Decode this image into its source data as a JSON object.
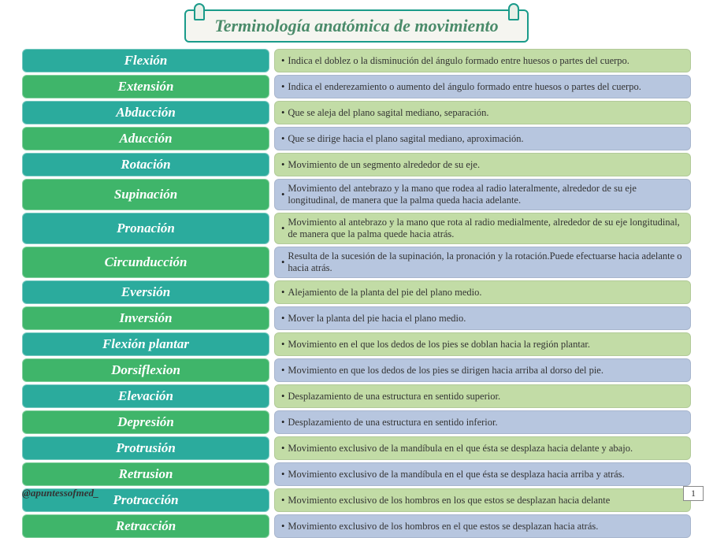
{
  "title": "Terminología anatómica de movimiento",
  "footer": "@apuntessofmed_",
  "pageNumber": "1",
  "colors": {
    "teal": "#2bab9d",
    "green": "#3fb56a",
    "descGreen": "#c2dca6",
    "descBlue": "#b7c6df"
  },
  "rows": [
    {
      "term": "Flexión",
      "termColor": "teal",
      "desc": "Indica el doblez o la disminución del ángulo formado entre huesos o partes del cuerpo.",
      "descColor": "descGreen"
    },
    {
      "term": "Extensión",
      "termColor": "green",
      "desc": "Indica el enderezamiento o aumento del ángulo formado entre huesos o partes del cuerpo.",
      "descColor": "descBlue"
    },
    {
      "term": "Abducción",
      "termColor": "teal",
      "desc": "Que se aleja del plano sagital mediano, separación.",
      "descColor": "descGreen"
    },
    {
      "term": "Aducción",
      "termColor": "green",
      "desc": "Que se dirige hacia el plano sagital mediano, aproximación.",
      "descColor": "descBlue"
    },
    {
      "term": "Rotación",
      "termColor": "teal",
      "desc": "Movimiento de un segmento alrededor de su eje.",
      "descColor": "descGreen"
    },
    {
      "term": "Supinación",
      "termColor": "green",
      "desc": "Movimiento del antebrazo y la mano que rodea al radio lateralmente, alrededor de su eje longitudinal, de manera que la palma queda hacia adelante.",
      "descColor": "descBlue"
    },
    {
      "term": "Pronación",
      "termColor": "teal",
      "desc": "Movimiento al antebrazo y la mano que rota al radio medialmente, alrededor de su eje longitudinal, de manera que la palma quede hacia atrás.",
      "descColor": "descGreen"
    },
    {
      "term": "Circunducción",
      "termColor": "green",
      "desc": "Resulta de la sucesión de la supinación, la pronación y la rotación.Puede efectuarse hacia adelante o hacia atrás.",
      "descColor": "descBlue"
    },
    {
      "term": "Eversión",
      "termColor": "teal",
      "desc": "Alejamiento de la planta del pie del plano medio.",
      "descColor": "descGreen"
    },
    {
      "term": "Inversión",
      "termColor": "green",
      "desc": "Mover la planta del pie hacia el plano medio.",
      "descColor": "descBlue"
    },
    {
      "term": "Flexión plantar",
      "termColor": "teal",
      "desc": "Movimiento en el que los dedos de los pies se doblan hacia la región plantar.",
      "descColor": "descGreen"
    },
    {
      "term": "Dorsiflexion",
      "termColor": "green",
      "desc": "Movimiento en que los dedos de los pies se dirigen hacia arriba al dorso del pie.",
      "descColor": "descBlue"
    },
    {
      "term": "Elevación",
      "termColor": "teal",
      "desc": "Desplazamiento de una estructura en sentido superior.",
      "descColor": "descGreen"
    },
    {
      "term": "Depresión",
      "termColor": "green",
      "desc": "Desplazamiento de una estructura en sentido inferior.",
      "descColor": "descBlue"
    },
    {
      "term": "Protrusión",
      "termColor": "teal",
      "desc": "Movimiento exclusivo de la mandíbula en el que ésta se desplaza hacia delante y abajo.",
      "descColor": "descGreen"
    },
    {
      "term": "Retrusion",
      "termColor": "green",
      "desc": "Movimiento exclusivo de la mandíbula en el que ésta se desplaza hacia arriba y atrás.",
      "descColor": "descBlue"
    },
    {
      "term": "Protracción",
      "termColor": "teal",
      "desc": "Movimiento exclusivo de los hombros en los que estos se desplazan hacia delante",
      "descColor": "descGreen"
    },
    {
      "term": "Retracción",
      "termColor": "green",
      "desc": "Movimiento exclusivo de los hombros en el que estos se desplazan hacia atrás.",
      "descColor": "descBlue"
    }
  ]
}
